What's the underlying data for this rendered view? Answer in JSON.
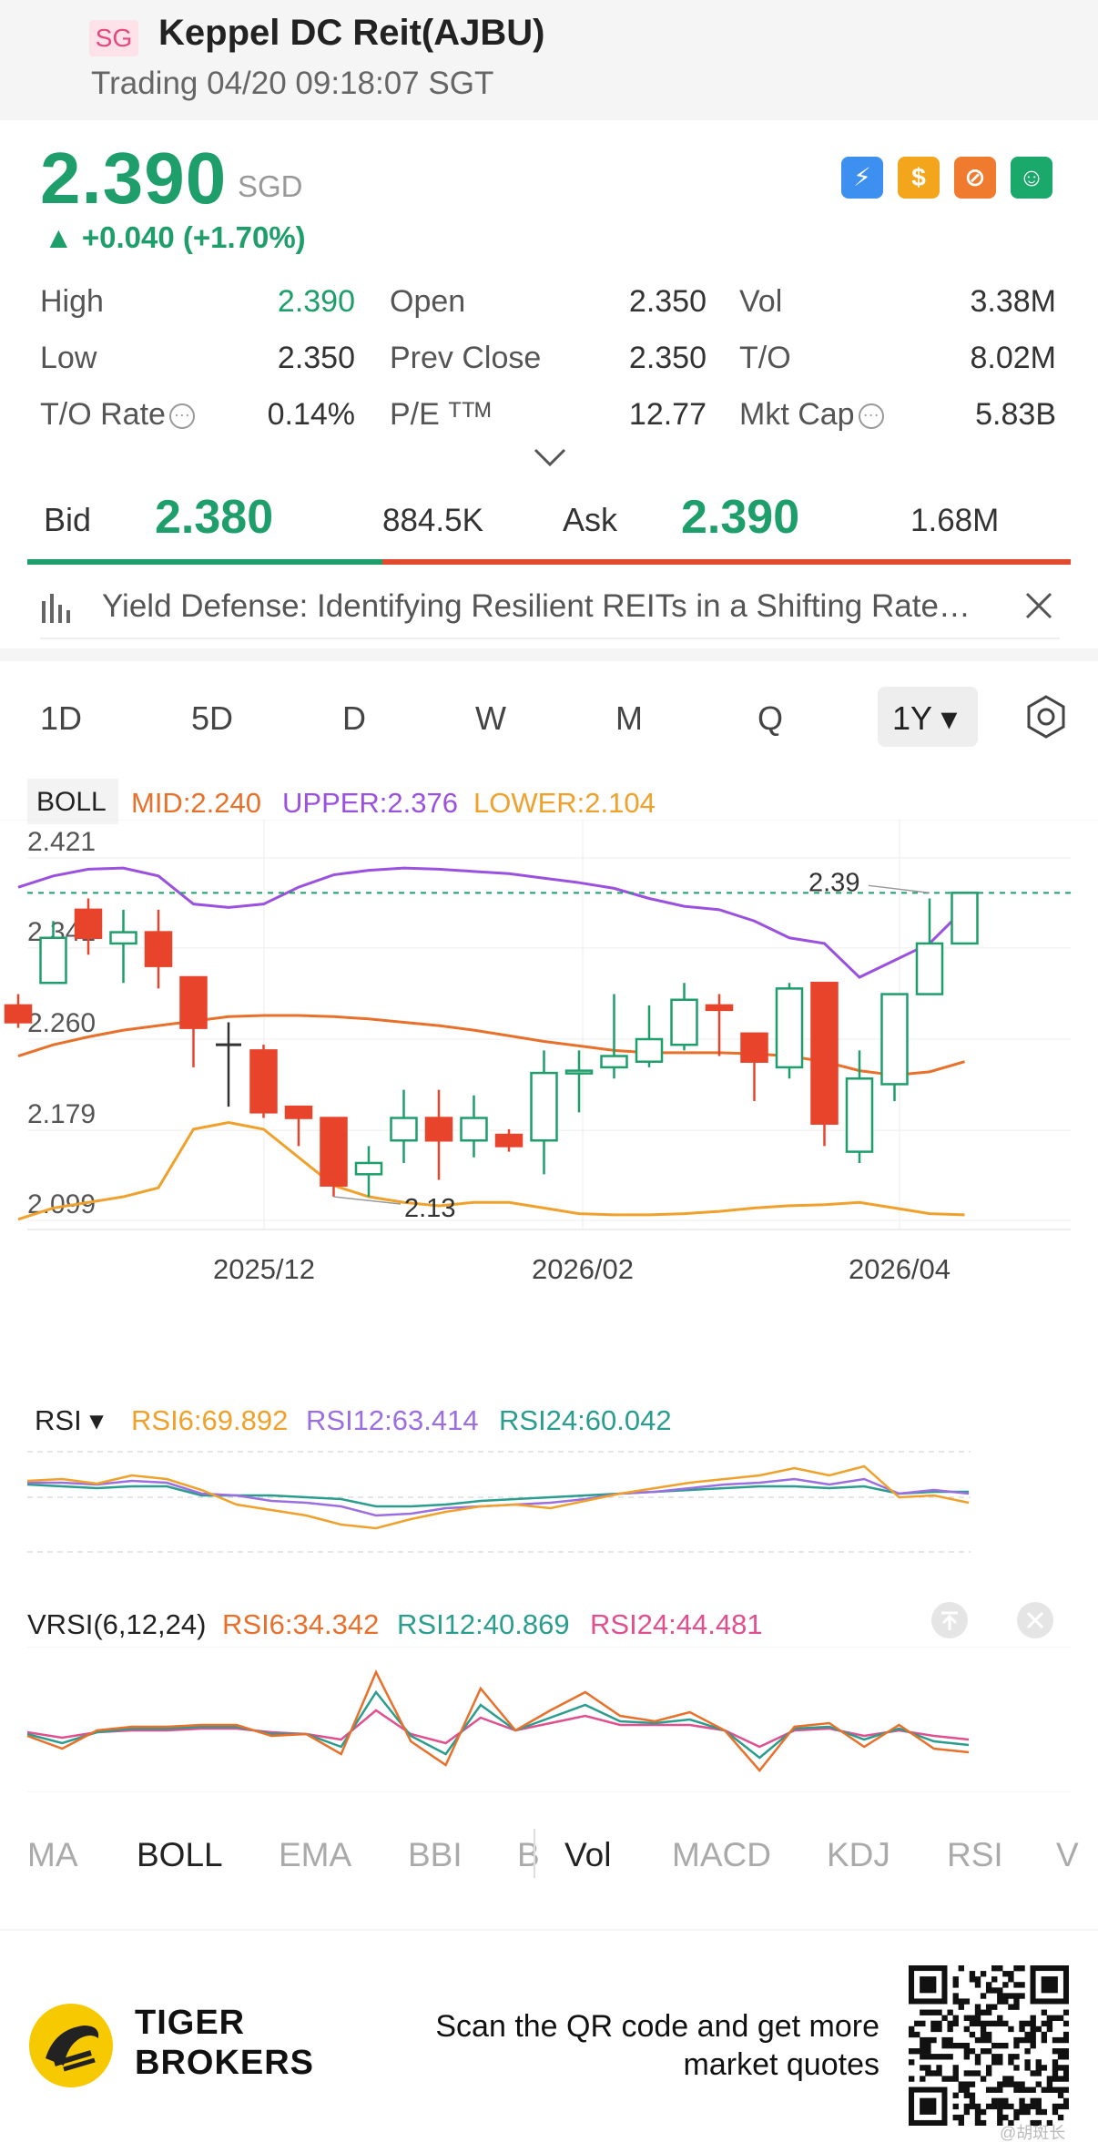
{
  "header": {
    "market_badge": "SG",
    "title": "Keppel DC Reit(AJBU)",
    "subtitle": "Trading 04/20 09:18:07 SGT"
  },
  "quote": {
    "price": "2.390",
    "currency": "SGD",
    "change": "▲ +0.040 (+1.70%)",
    "badges": [
      "lightning",
      "dollar",
      "no-symbol",
      "hand-coin"
    ]
  },
  "stats": [
    {
      "label": "High",
      "value": "2.390"
    },
    {
      "label": "Open",
      "value": "2.350"
    },
    {
      "label": "Vol",
      "value": "3.38M"
    },
    {
      "label": "Low",
      "value": "2.350"
    },
    {
      "label": "Prev Close",
      "value": "2.350"
    },
    {
      "label": "T/O",
      "value": "8.02M"
    },
    {
      "label": "T/O Rate",
      "value": "0.14%"
    },
    {
      "label": "P/E ᵀᵀᴹ",
      "value": "12.77"
    },
    {
      "label": "Mkt Cap",
      "value": "5.83B"
    }
  ],
  "bidask": {
    "bid_label": "Bid",
    "bid_price": "2.380",
    "bid_vol": "884.5K",
    "ask_label": "Ask",
    "ask_price": "2.390",
    "ask_vol": "1.68M",
    "bid_ratio": 0.34
  },
  "news": {
    "text": "Yield Defense: Identifying Resilient REITs in a Shifting Rate…"
  },
  "periods": [
    "1D",
    "5D",
    "D",
    "W",
    "M",
    "Q",
    "1Y ▾"
  ],
  "active_period": "1Y ▾",
  "boll": {
    "label": "BOLL",
    "mid": "MID:2.240",
    "upper": "UPPER:2.376",
    "lower": "LOWER:2.104",
    "y_ticks": [
      "2.421",
      "2.341",
      "2.260",
      "2.179",
      "2.099"
    ],
    "x_ticks": [
      "2025/12",
      "2026/02",
      "2026/04"
    ],
    "high_marker": "2.39",
    "low_marker": "2.13"
  },
  "rsi": {
    "label": "RSI ▾",
    "rsi6": "RSI6:69.892",
    "rsi12": "RSI12:63.414",
    "rsi24": "RSI24:60.042"
  },
  "vrsi": {
    "label": "VRSI(6,12,24)",
    "rsi6": "RSI6:34.342",
    "rsi12": "RSI12:40.869",
    "rsi24": "RSI24:44.481"
  },
  "indicator_tabs_main": [
    "MA",
    "BOLL",
    "EMA",
    "BBI",
    "B"
  ],
  "indicator_tabs_sub": [
    "Vol",
    "MACD",
    "KDJ",
    "RSI",
    "V"
  ],
  "footer": {
    "brand_line1": "TIGER",
    "brand_line2": "BROKERS",
    "cta_line1": "Scan the QR code and get more",
    "cta_line2": "market quotes",
    "watermark": "@胡斑长"
  },
  "chart_data": {
    "type": "candlestick",
    "title": "",
    "x_ticks": [
      "2025/12",
      "2026/02",
      "2026/04"
    ],
    "ylim": [
      2.099,
      2.421
    ],
    "candles": [
      {
        "o": 2.29,
        "c": 2.275,
        "h": 2.3,
        "l": 2.27
      },
      {
        "o": 2.31,
        "c": 2.35,
        "h": 2.365,
        "l": 2.31
      },
      {
        "o": 2.375,
        "c": 2.35,
        "h": 2.385,
        "l": 2.335
      },
      {
        "o": 2.345,
        "c": 2.355,
        "h": 2.375,
        "l": 2.31
      },
      {
        "o": 2.355,
        "c": 2.325,
        "h": 2.375,
        "l": 2.305
      },
      {
        "o": 2.315,
        "c": 2.27,
        "h": 2.315,
        "l": 2.235
      },
      {
        "o": 2.255,
        "c": 2.255,
        "h": 2.275,
        "l": 2.2
      },
      {
        "o": 2.25,
        "c": 2.195,
        "h": 2.255,
        "l": 2.19
      },
      {
        "o": 2.2,
        "c": 2.19,
        "h": 2.2,
        "l": 2.165
      },
      {
        "o": 2.19,
        "c": 2.13,
        "h": 2.19,
        "l": 2.12
      },
      {
        "o": 2.14,
        "c": 2.15,
        "h": 2.165,
        "l": 2.12
      },
      {
        "o": 2.17,
        "c": 2.19,
        "h": 2.215,
        "l": 2.15
      },
      {
        "o": 2.19,
        "c": 2.17,
        "h": 2.215,
        "l": 2.135
      },
      {
        "o": 2.17,
        "c": 2.19,
        "h": 2.21,
        "l": 2.155
      },
      {
        "o": 2.175,
        "c": 2.165,
        "h": 2.18,
        "l": 2.16
      },
      {
        "o": 2.17,
        "c": 2.23,
        "h": 2.25,
        "l": 2.14
      },
      {
        "o": 2.23,
        "c": 2.232,
        "h": 2.25,
        "l": 2.195
      },
      {
        "o": 2.235,
        "c": 2.245,
        "h": 2.3,
        "l": 2.225
      },
      {
        "o": 2.24,
        "c": 2.26,
        "h": 2.29,
        "l": 2.235
      },
      {
        "o": 2.255,
        "c": 2.295,
        "h": 2.31,
        "l": 2.25
      },
      {
        "o": 2.29,
        "c": 2.286,
        "h": 2.3,
        "l": 2.245
      },
      {
        "o": 2.265,
        "c": 2.24,
        "h": 2.265,
        "l": 2.205
      },
      {
        "o": 2.235,
        "c": 2.305,
        "h": 2.31,
        "l": 2.225
      },
      {
        "o": 2.31,
        "c": 2.185,
        "h": 2.31,
        "l": 2.165
      },
      {
        "o": 2.16,
        "c": 2.225,
        "h": 2.25,
        "l": 2.15
      },
      {
        "o": 2.22,
        "c": 2.3,
        "h": 2.3,
        "l": 2.205
      },
      {
        "o": 2.3,
        "c": 2.345,
        "h": 2.385,
        "l": 2.3
      },
      {
        "o": 2.345,
        "c": 2.39,
        "h": 2.39,
        "l": 2.345
      }
    ],
    "series": [
      {
        "name": "MID",
        "color": "#e8702a",
        "values": [
          2.245,
          2.255,
          2.262,
          2.268,
          2.272,
          2.276,
          2.28,
          2.281,
          2.281,
          2.28,
          2.278,
          2.275,
          2.272,
          2.268,
          2.263,
          2.258,
          2.254,
          2.25,
          2.248,
          2.248,
          2.248,
          2.247,
          2.245,
          2.24,
          2.232,
          2.228,
          2.231,
          2.24
        ]
      },
      {
        "name": "UPPER",
        "color": "#9b51e0",
        "values": [
          2.395,
          2.405,
          2.411,
          2.412,
          2.405,
          2.38,
          2.377,
          2.38,
          2.395,
          2.406,
          2.41,
          2.412,
          2.411,
          2.409,
          2.407,
          2.403,
          2.399,
          2.394,
          2.385,
          2.378,
          2.375,
          2.365,
          2.35,
          2.345,
          2.315,
          2.33,
          2.345,
          2.376
        ]
      },
      {
        "name": "LOWER",
        "color": "#f0a12b",
        "values": [
          2.1,
          2.11,
          2.115,
          2.12,
          2.128,
          2.18,
          2.186,
          2.18,
          2.155,
          2.13,
          2.12,
          2.115,
          2.112,
          2.115,
          2.115,
          2.11,
          2.105,
          2.104,
          2.104,
          2.105,
          2.107,
          2.11,
          2.112,
          2.113,
          2.115,
          2.11,
          2.105,
          2.104
        ]
      }
    ]
  }
}
